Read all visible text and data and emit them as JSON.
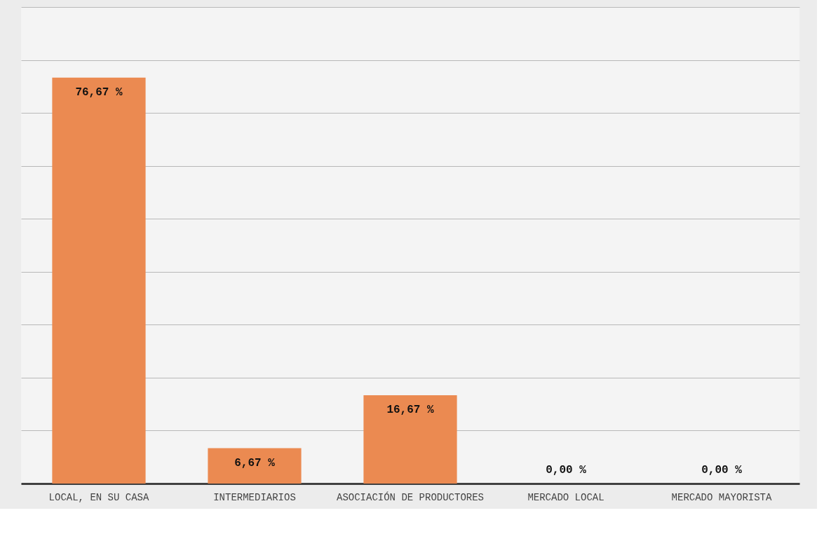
{
  "chart_data": {
    "type": "bar",
    "categories": [
      "LOCAL, EN SU CASA",
      "INTERMEDIARIOS",
      "ASOCIACIÓN DE PRODUCTORES",
      "MERCADO LOCAL",
      "MERCADO MAYORISTA"
    ],
    "values": [
      76.67,
      6.67,
      16.67,
      0,
      0
    ],
    "value_labels": [
      "76,67 %",
      "6,67 %",
      "16,67 %",
      "0,00 %",
      "0,00 %"
    ],
    "color": "#eb8a51",
    "relative": false,
    "ylim": [
      0,
      90
    ],
    "yticks": [
      {
        "value": 0,
        "label": null
      },
      {
        "value": 10,
        "label": null
      },
      {
        "value": 20,
        "label": null
      },
      {
        "value": 30,
        "label": null
      },
      {
        "value": 40,
        "label": null
      },
      {
        "value": 50,
        "label": null
      },
      {
        "value": 60,
        "label": null
      },
      {
        "value": 70,
        "label": null
      },
      {
        "value": 80,
        "label": null
      },
      {
        "value": 90,
        "label": null
      }
    ],
    "grid": "y",
    "tick_labels": "x"
  }
}
